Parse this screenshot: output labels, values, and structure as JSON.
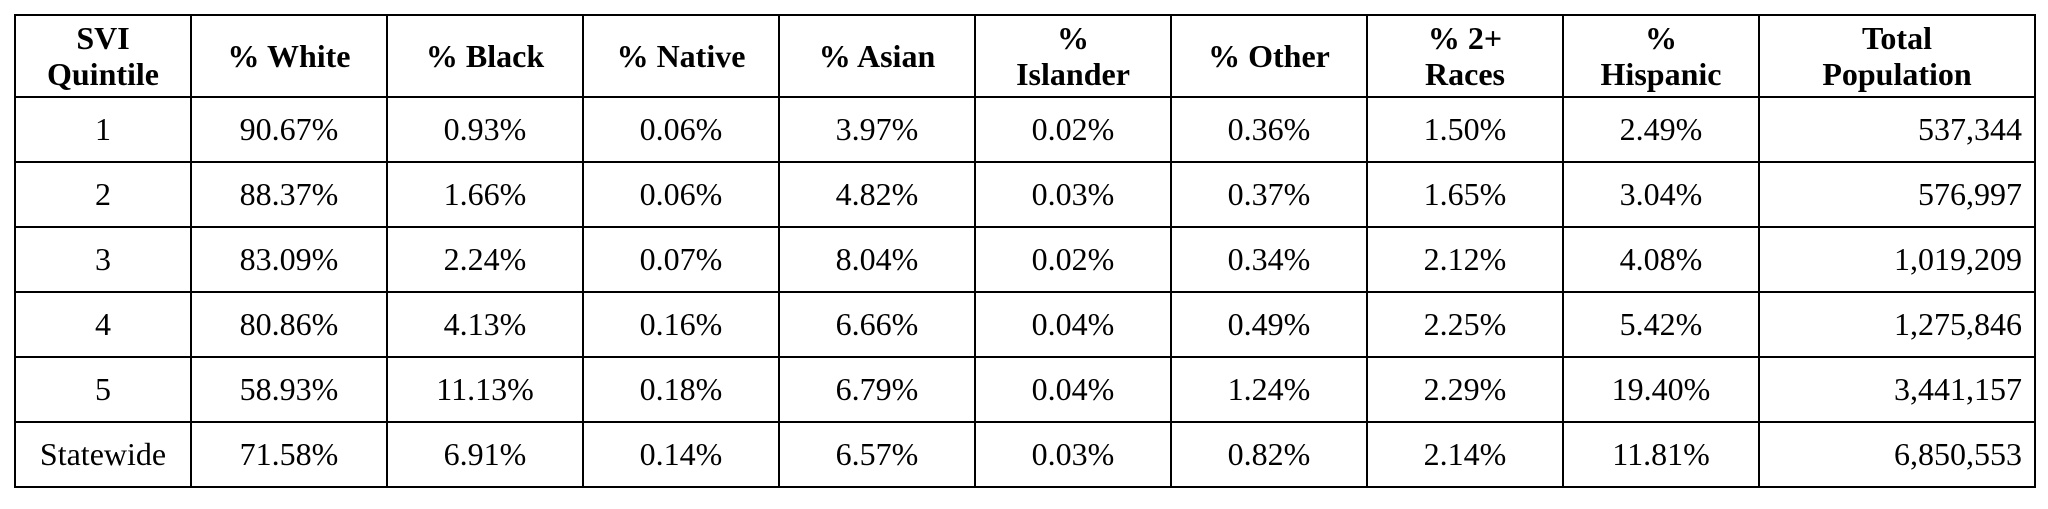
{
  "table": {
    "headers": [
      [
        "SVI",
        "Quintile"
      ],
      [
        "% White"
      ],
      [
        "% Black"
      ],
      [
        "% Native"
      ],
      [
        "% Asian"
      ],
      [
        "%",
        "Islander"
      ],
      [
        "% Other"
      ],
      [
        "% 2+",
        "Races"
      ],
      [
        "%",
        "Hispanic"
      ],
      [
        "Total",
        "Population"
      ]
    ],
    "rows": [
      [
        "1",
        "90.67%",
        "0.93%",
        "0.06%",
        "3.97%",
        "0.02%",
        "0.36%",
        "1.50%",
        "2.49%",
        "537,344"
      ],
      [
        "2",
        "88.37%",
        "1.66%",
        "0.06%",
        "4.82%",
        "0.03%",
        "0.37%",
        "1.65%",
        "3.04%",
        "576,997"
      ],
      [
        "3",
        "83.09%",
        "2.24%",
        "0.07%",
        "8.04%",
        "0.02%",
        "0.34%",
        "2.12%",
        "4.08%",
        "1,019,209"
      ],
      [
        "4",
        "80.86%",
        "4.13%",
        "0.16%",
        "6.66%",
        "0.04%",
        "0.49%",
        "2.25%",
        "5.42%",
        "1,275,846"
      ],
      [
        "5",
        "58.93%",
        "11.13%",
        "0.18%",
        "6.79%",
        "0.04%",
        "1.24%",
        "2.29%",
        "19.40%",
        "3,441,157"
      ],
      [
        "Statewide",
        "71.58%",
        "6.91%",
        "0.14%",
        "6.57%",
        "0.03%",
        "0.82%",
        "2.14%",
        "11.81%",
        "6,850,553"
      ]
    ]
  }
}
